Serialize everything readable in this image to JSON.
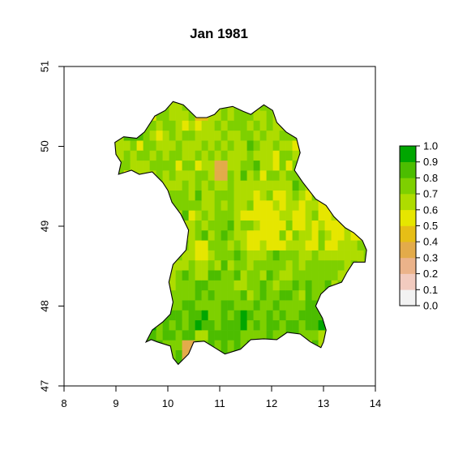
{
  "map": {
    "title": "Jan 1981",
    "x_axis": {
      "range": [
        8,
        14
      ],
      "ticks": [
        8,
        9,
        10,
        11,
        12,
        13,
        14
      ]
    },
    "y_axis": {
      "range": [
        47,
        51
      ],
      "ticks": [
        47,
        48,
        49,
        50,
        51
      ]
    },
    "region": "Bavaria",
    "grid_resolution_deg": 0.125
  },
  "legend": {
    "ticks": [
      "1.0",
      "0.9",
      "0.8",
      "0.7",
      "0.6",
      "0.5",
      "0.4",
      "0.3",
      "0.2",
      "0.1",
      "0.0"
    ],
    "bins": [
      {
        "from": 0.0,
        "to": 0.1,
        "color": "#f2f2f2"
      },
      {
        "from": 0.1,
        "to": 0.2,
        "color": "#f2cbbf"
      },
      {
        "from": 0.2,
        "to": 0.3,
        "color": "#ebb38a"
      },
      {
        "from": 0.3,
        "to": 0.4,
        "color": "#e3ab4a"
      },
      {
        "from": 0.4,
        "to": 0.5,
        "color": "#e6be16"
      },
      {
        "from": 0.5,
        "to": 0.6,
        "color": "#e6e600"
      },
      {
        "from": 0.6,
        "to": 0.7,
        "color": "#aedc00"
      },
      {
        "from": 0.7,
        "to": 0.8,
        "color": "#7ed000"
      },
      {
        "from": 0.8,
        "to": 0.9,
        "color": "#4cbd00"
      },
      {
        "from": 0.9,
        "to": 1.0,
        "color": "#00a600"
      }
    ]
  },
  "highlights": [
    {
      "lon": 10.95,
      "lat": 49.6,
      "value": 0.3
    },
    {
      "lon": 10.3,
      "lat": 47.35,
      "value": 0.35
    },
    {
      "lon": 12.95,
      "lat": 49.1,
      "value": 0.55
    },
    {
      "lon": 11.55,
      "lat": 48.8,
      "value": 0.55
    },
    {
      "lon": 10.6,
      "lat": 48.65,
      "value": 0.55
    },
    {
      "lon": 11.9,
      "lat": 48.95,
      "value": 0.5
    },
    {
      "lon": 10.55,
      "lat": 50.4,
      "value": 0.45
    }
  ]
}
